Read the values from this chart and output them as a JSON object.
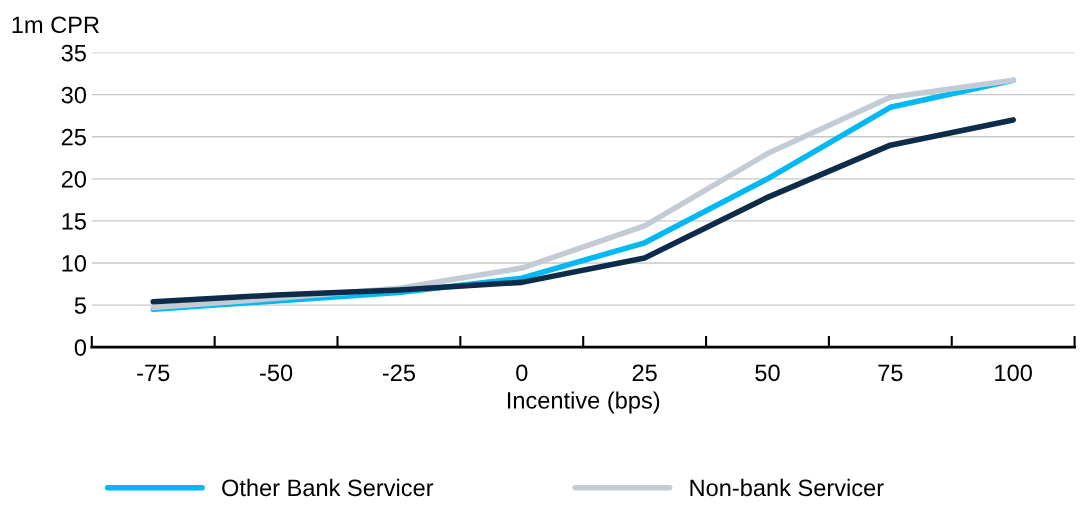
{
  "chart_data": {
    "type": "line",
    "ylabel": "1m CPR",
    "xlabel": "Incentive (bps)",
    "categories": [
      "-75",
      "-50",
      "-25",
      "0",
      "25",
      "50",
      "75",
      "100"
    ],
    "ylim": [
      0,
      35
    ],
    "yticks": [
      0,
      5,
      10,
      15,
      20,
      25,
      30,
      35
    ],
    "grid": "y",
    "legend": "bottom",
    "marker": "none",
    "line_style": "solid",
    "series": [
      {
        "color": "#0d2c4a",
        "values": [
          5.4,
          6.2,
          6.8,
          7.7,
          10.6,
          17.8,
          24.0,
          27.0
        ]
      },
      {
        "name": "Other Bank Servicer",
        "color": "#00b9f2",
        "values": [
          4.5,
          5.5,
          6.5,
          8.2,
          12.4,
          20.0,
          28.5,
          31.7
        ]
      },
      {
        "name": "Non-bank Servicer",
        "color": "#c3ccd4",
        "values": [
          4.7,
          5.8,
          7.0,
          9.4,
          14.4,
          23.0,
          29.7,
          31.7
        ]
      }
    ]
  }
}
